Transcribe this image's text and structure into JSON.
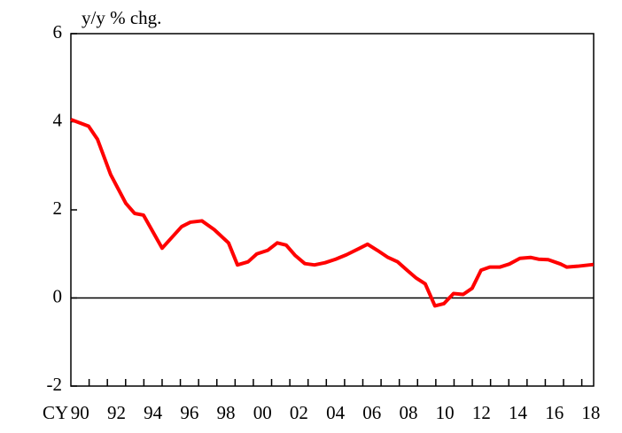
{
  "chart_data": {
    "type": "line",
    "y_label": "y/y % chg.",
    "x_label": "CY",
    "x": [
      1989.5,
      1990.47,
      1990.96,
      1991.68,
      1992.51,
      1992.99,
      1993.48,
      1994.5,
      1995.57,
      1996.05,
      1996.68,
      1997.36,
      1998.14,
      1998.63,
      1999.21,
      1999.69,
      2000.28,
      2000.81,
      2001.3,
      2001.78,
      2002.32,
      2002.85,
      2003.43,
      2004.01,
      2004.6,
      2005.28,
      2005.76,
      2006.3,
      2006.88,
      2007.41,
      2007.95,
      2008.43,
      2008.92,
      2009.45,
      2009.94,
      2010.47,
      2011.0,
      2011.49,
      2011.98,
      2012.46,
      2013.0,
      2013.53,
      2014.11,
      2014.69,
      2015.13,
      2015.66,
      2016.34,
      2016.68,
      2017.27,
      2018.14
    ],
    "series": [
      {
        "color": "#ff0000",
        "values": [
          4.05,
          3.9,
          3.6,
          2.8,
          2.15,
          1.92,
          1.88,
          1.13,
          1.62,
          1.72,
          1.75,
          1.55,
          1.25,
          0.75,
          0.82,
          1.0,
          1.08,
          1.25,
          1.2,
          0.97,
          0.78,
          0.75,
          0.8,
          0.88,
          0.98,
          1.12,
          1.22,
          1.08,
          0.92,
          0.82,
          0.62,
          0.45,
          0.32,
          -0.18,
          -0.13,
          0.1,
          0.08,
          0.22,
          0.63,
          0.7,
          0.7,
          0.77,
          0.9,
          0.92,
          0.88,
          0.87,
          0.77,
          0.7,
          0.72,
          0.76
        ]
      }
    ],
    "xlim": [
      1989.5,
      2018.15
    ],
    "ylim": [
      -2,
      6
    ],
    "yticks": [
      -2,
      0,
      2,
      4,
      6
    ],
    "xticks": [
      {
        "value": 1990,
        "label": "90"
      },
      {
        "value": 1992,
        "label": "92"
      },
      {
        "value": 1994,
        "label": "94"
      },
      {
        "value": 1996,
        "label": "96"
      },
      {
        "value": 1998,
        "label": "98"
      },
      {
        "value": 2000,
        "label": "00"
      },
      {
        "value": 2002,
        "label": "02"
      },
      {
        "value": 2004,
        "label": "04"
      },
      {
        "value": 2006,
        "label": "06"
      },
      {
        "value": 2008,
        "label": "08"
      },
      {
        "value": 2010,
        "label": "10"
      },
      {
        "value": 2012,
        "label": "12"
      },
      {
        "value": 2014,
        "label": "14"
      },
      {
        "value": 2016,
        "label": "16"
      },
      {
        "value": 2018,
        "label": "18"
      }
    ],
    "xminorticks": [
      1990.5,
      1991.5,
      1992.5,
      1993.5,
      1994.5,
      1995.5,
      1996.5,
      1997.5,
      1998.5,
      1999.5,
      2000.5,
      2001.5,
      2002.5,
      2003.5,
      2004.5,
      2005.5,
      2006.5,
      2007.5,
      2008.5,
      2009.5,
      2010.5,
      2011.5,
      2012.5,
      2013.5,
      2014.5,
      2015.5,
      2016.5,
      2017.5
    ],
    "zero_line": true
  }
}
